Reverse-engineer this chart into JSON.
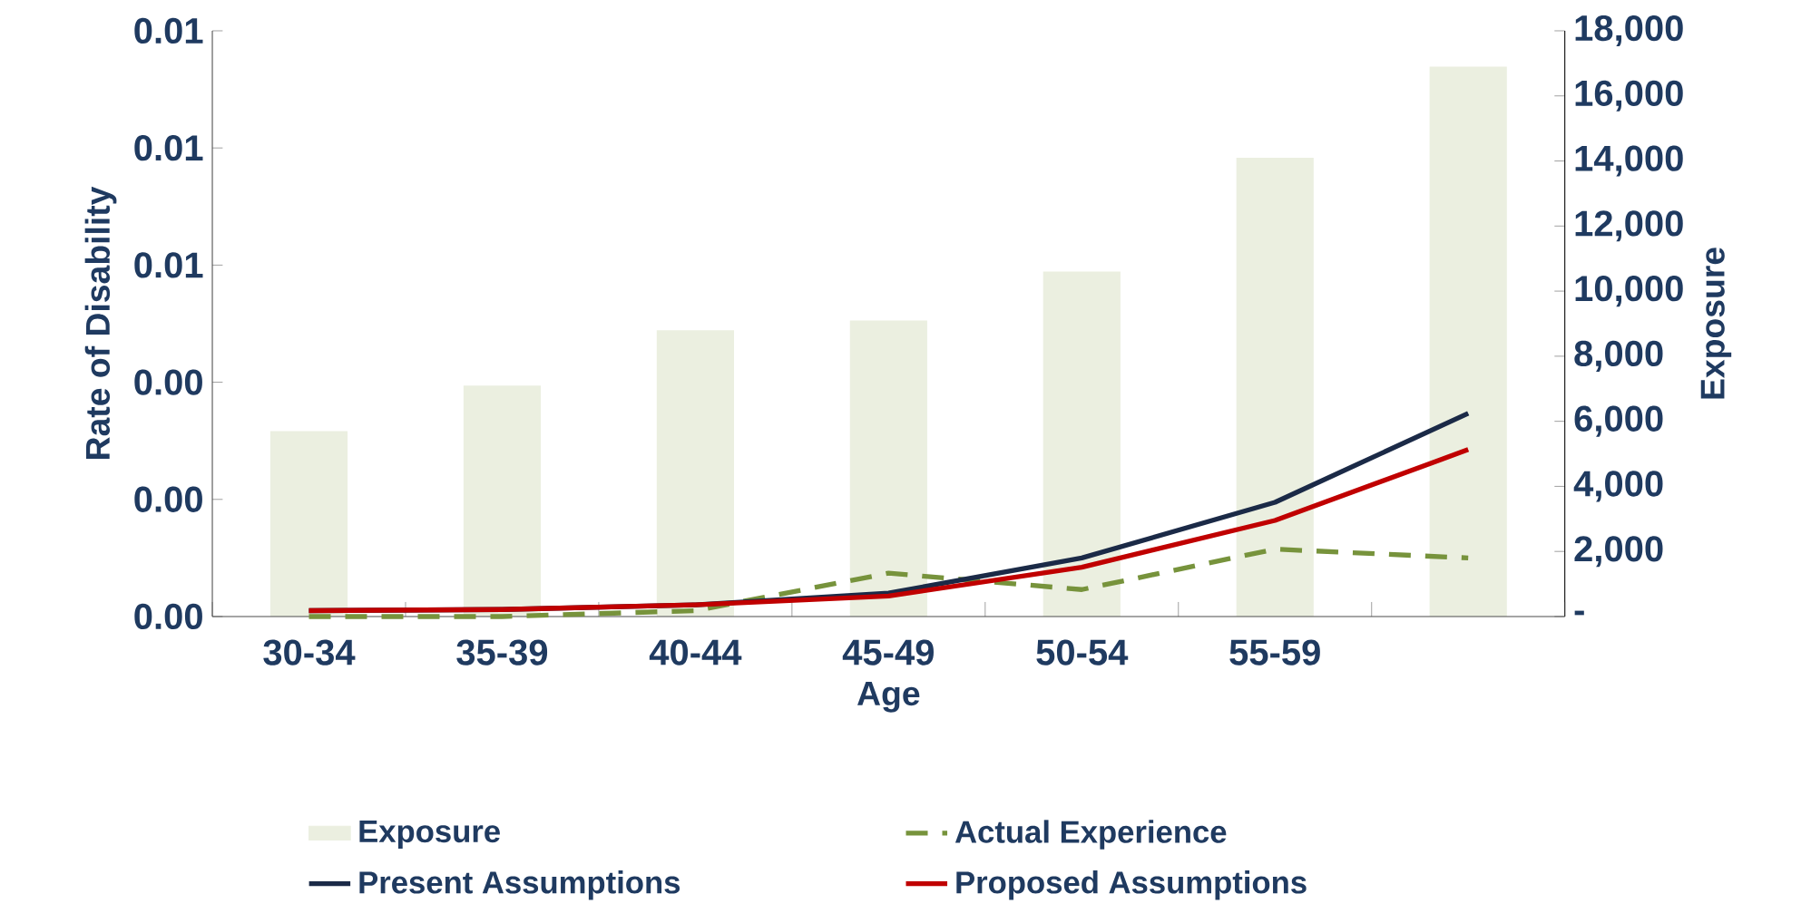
{
  "chart_data": {
    "type": "line",
    "xlabel": "Age",
    "ylabel": "Rate of Disability",
    "y2label": "Exposure",
    "categories": [
      "30-34",
      "35-39",
      "40-44",
      "45-49",
      "50-54",
      "55-59",
      null
    ],
    "series": [
      {
        "name": "Exposure",
        "type": "bar",
        "axis": "y2",
        "color": "#ebefe0",
        "values": [
          5700,
          7100,
          8800,
          9100,
          10600,
          14100,
          16900
        ]
      },
      {
        "name": "Actual Experience",
        "color": "#77933c",
        "line_style": "dashed",
        "values": [
          0.0,
          0.0,
          0.0001,
          0.00074,
          0.00046,
          0.00115,
          0.001
        ]
      },
      {
        "name": "Present Assumptions",
        "color": "#1b2a47",
        "line_style": "solid",
        "values": [
          0.0001,
          0.00012,
          0.0002,
          0.0004,
          0.001,
          0.00195,
          0.00347
        ]
      },
      {
        "name": "Proposed Assumptions",
        "color": "#c00000",
        "line_style": "solid",
        "values": [
          0.0001,
          0.00012,
          0.0002,
          0.00035,
          0.00084,
          0.00164,
          0.00285
        ]
      }
    ],
    "ylim": [
      0,
      0.01
    ],
    "yticks": [
      {
        "value": 0,
        "label": "0.00"
      },
      {
        "value": 0.002,
        "label": "0.00"
      },
      {
        "value": 0.004,
        "label": "0.00"
      },
      {
        "value": 0.006,
        "label": "0.01"
      },
      {
        "value": 0.008,
        "label": "0.01"
      },
      {
        "value": 0.01,
        "label": "0.01"
      }
    ],
    "y2lim": [
      0,
      18000
    ],
    "y2ticks": [
      {
        "value": 0,
        "label": "-"
      },
      {
        "value": 2000,
        "label": "2,000"
      },
      {
        "value": 4000,
        "label": "4,000"
      },
      {
        "value": 6000,
        "label": "6,000"
      },
      {
        "value": 8000,
        "label": "8,000"
      },
      {
        "value": 10000,
        "label": "10,000"
      },
      {
        "value": 12000,
        "label": "12,000"
      },
      {
        "value": 14000,
        "label": "14,000"
      },
      {
        "value": 16000,
        "label": "16,000"
      },
      {
        "value": 18000,
        "label": "18,000"
      }
    ],
    "legend": "bottom"
  }
}
